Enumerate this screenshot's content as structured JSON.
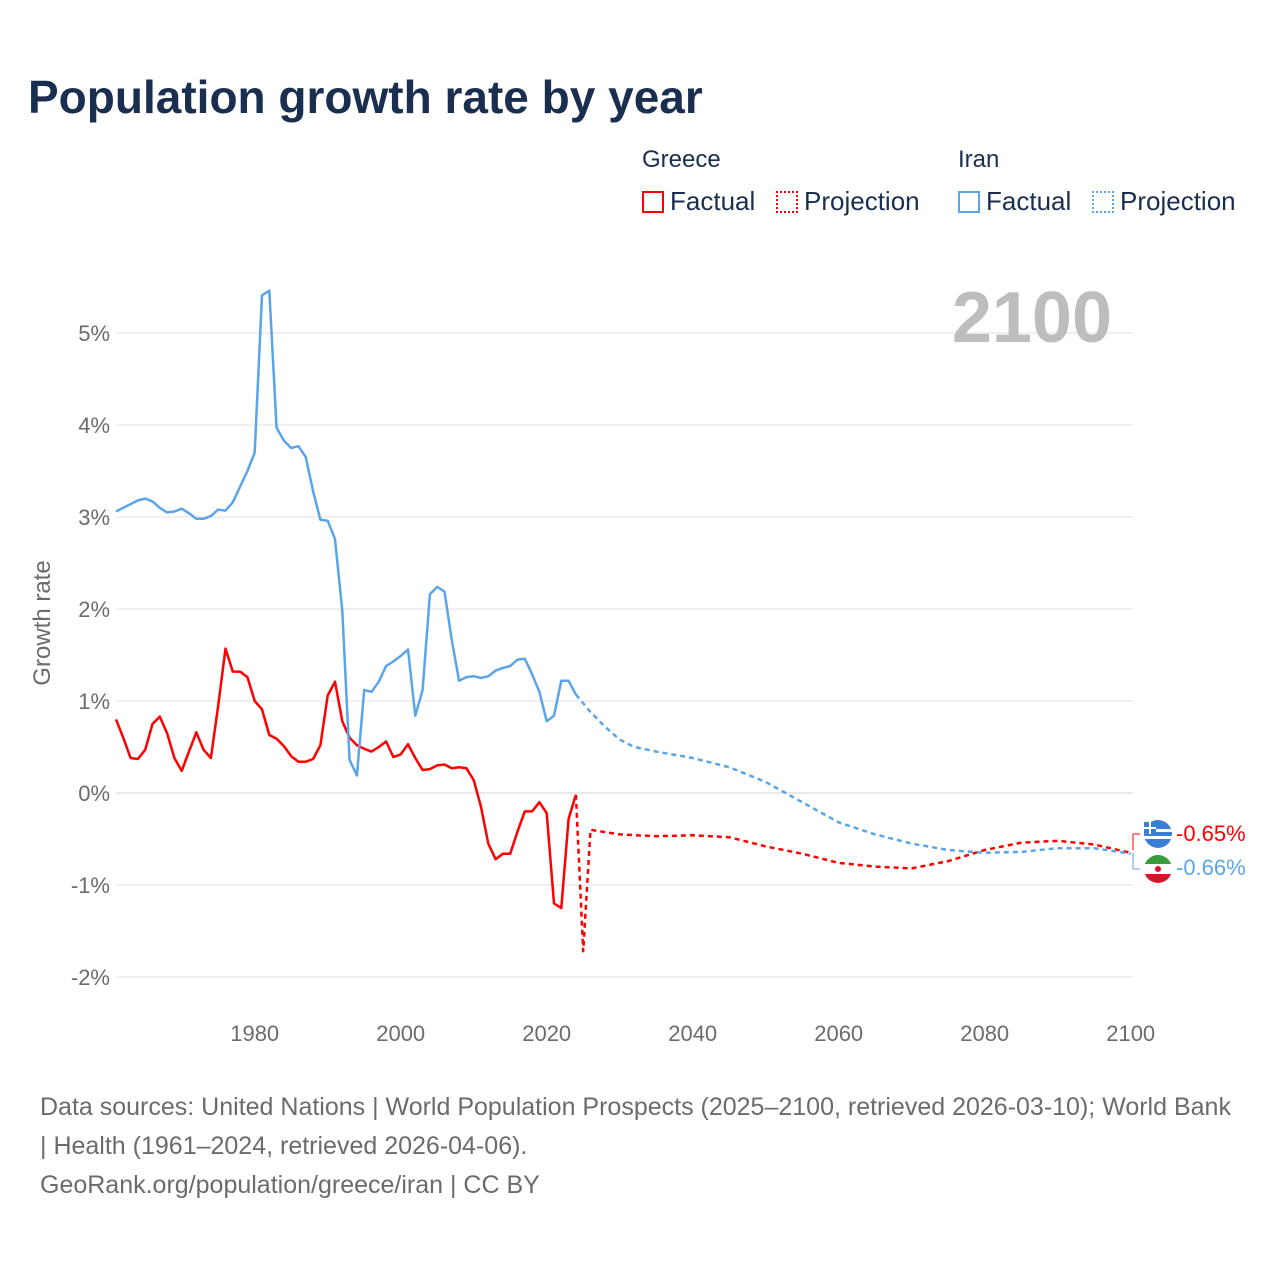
{
  "title": "Population growth rate by year",
  "legend": {
    "groups": [
      {
        "name": "Greece",
        "color": "#ff0000",
        "items": [
          "Factual",
          "Projection"
        ]
      },
      {
        "name": "Iran",
        "color": "#5aa5ea",
        "items": [
          "Factual",
          "Projection"
        ]
      }
    ]
  },
  "year_label": "2100",
  "end_labels": {
    "greece": "-0.65%",
    "iran": "-0.66%"
  },
  "source_lines": [
    "Data sources: United Nations | World Population Prospects (2025–2100, retrieved 2026-03-10); World Bank | Health (1961–2024, retrieved 2026-04-06).",
    "GeoRank.org/population/greece/iran | CC BY"
  ],
  "chart_data": {
    "type": "line",
    "title": "Population growth rate by year",
    "xlabel": "",
    "ylabel": "Growth rate",
    "xlim": [
      1961,
      2100
    ],
    "ylim": [
      -2.2,
      5.6
    ],
    "xticks": [
      1980,
      2000,
      2020,
      2040,
      2060,
      2080,
      2100
    ],
    "yticks": [
      -2,
      -1,
      0,
      1,
      2,
      3,
      4,
      5
    ],
    "ytick_labels": [
      "-2%",
      "-1%",
      "0%",
      "1%",
      "2%",
      "3%",
      "4%",
      "5%"
    ],
    "grid": true,
    "series": [
      {
        "name": "Greece Factual",
        "color": "#ff0000",
        "dash": false,
        "x0": 1961,
        "values": [
          0.8,
          0.6,
          0.38,
          0.37,
          0.47,
          0.75,
          0.83,
          0.65,
          0.38,
          0.24,
          0.45,
          0.66,
          0.47,
          0.38,
          0.95,
          1.57,
          1.32,
          1.32,
          1.26,
          1.0,
          0.91,
          0.63,
          0.59,
          0.51,
          0.4,
          0.34,
          0.34,
          0.37,
          0.52,
          1.06,
          1.21,
          0.78,
          0.6,
          0.52,
          0.48,
          0.45,
          0.5,
          0.56,
          0.39,
          0.42,
          0.53,
          0.38,
          0.25,
          0.26,
          0.3,
          0.31,
          0.27,
          0.28,
          0.27,
          0.14,
          -0.15,
          -0.55,
          -0.72,
          -0.66,
          -0.66,
          -0.42,
          -0.2,
          -0.2,
          -0.1,
          -0.22,
          -1.2,
          -1.25,
          -0.28,
          -0.02
        ]
      },
      {
        "name": "Greece Projection",
        "color": "#ff0000",
        "dash": true,
        "x": [
          2024,
          2025,
          2026,
          2030,
          2035,
          2040,
          2045,
          2050,
          2055,
          2060,
          2065,
          2070,
          2075,
          2080,
          2085,
          2090,
          2095,
          2100
        ],
        "values": [
          -0.02,
          -1.72,
          -0.4,
          -0.45,
          -0.47,
          -0.46,
          -0.48,
          -0.58,
          -0.66,
          -0.76,
          -0.8,
          -0.82,
          -0.74,
          -0.62,
          -0.54,
          -0.52,
          -0.56,
          -0.65
        ]
      },
      {
        "name": "Iran Factual",
        "color": "#5aa5ea",
        "dash": false,
        "x0": 1961,
        "values": [
          3.06,
          3.1,
          3.14,
          3.18,
          3.2,
          3.17,
          3.1,
          3.05,
          3.06,
          3.09,
          3.04,
          2.98,
          2.98,
          3.01,
          3.08,
          3.07,
          3.16,
          3.33,
          3.5,
          3.7,
          5.41,
          5.46,
          3.97,
          3.83,
          3.75,
          3.77,
          3.65,
          3.28,
          2.97,
          2.96,
          2.76,
          1.98,
          0.36,
          0.19,
          1.12,
          1.1,
          1.21,
          1.38,
          1.43,
          1.49,
          1.56,
          0.84,
          1.12,
          2.16,
          2.24,
          2.19,
          1.66,
          1.22,
          1.26,
          1.27,
          1.25,
          1.27,
          1.33,
          1.36,
          1.38,
          1.45,
          1.46,
          1.29,
          1.1,
          0.78,
          0.84,
          1.22,
          1.22,
          1.07
        ]
      },
      {
        "name": "Iran Projection",
        "color": "#5aa5ea",
        "dash": true,
        "x": [
          2024,
          2026,
          2028,
          2030,
          2032,
          2035,
          2040,
          2045,
          2050,
          2055,
          2060,
          2065,
          2070,
          2075,
          2080,
          2085,
          2090,
          2095,
          2100
        ],
        "values": [
          1.07,
          0.88,
          0.72,
          0.58,
          0.5,
          0.45,
          0.38,
          0.28,
          0.12,
          -0.1,
          -0.32,
          -0.45,
          -0.55,
          -0.62,
          -0.65,
          -0.64,
          -0.6,
          -0.6,
          -0.66
        ]
      }
    ]
  }
}
